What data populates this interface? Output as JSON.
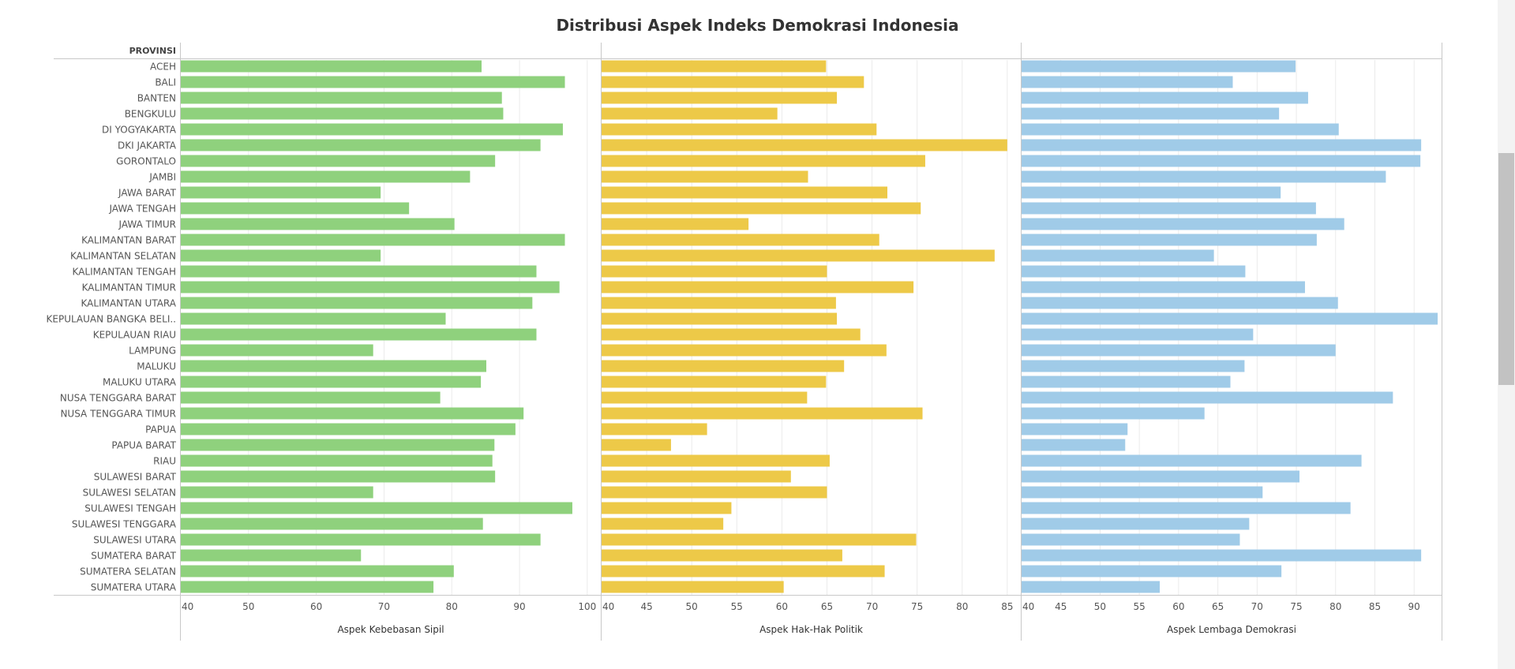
{
  "title": "Distribusi Aspek Indeks Demokrasi Indonesia",
  "colors": {
    "sipil": "#8fd17d",
    "politik": "#edc948",
    "lembaga": "#a0cbe8",
    "grid": "#ebebeb",
    "axis": "#c8c8c8",
    "text": "#555555"
  },
  "chart_data": {
    "type": "bar",
    "orientation": "horizontal",
    "row_header": "PROVINSI",
    "categories": [
      "ACEH",
      "BALI",
      "BANTEN",
      "BENGKULU",
      "DI YOGYAKARTA",
      "DKI JAKARTA",
      "GORONTALO",
      "JAMBI",
      "JAWA BARAT",
      "JAWA TENGAH",
      "JAWA TIMUR",
      "KALIMANTAN BARAT",
      "KALIMANTAN SELATAN",
      "KALIMANTAN TENGAH",
      "KALIMANTAN TIMUR",
      "KALIMANTAN UTARA",
      "KEPULAUAN BANGKA BELI..",
      "KEPULAUAN RIAU",
      "LAMPUNG",
      "MALUKU",
      "MALUKU UTARA",
      "NUSA TENGGARA BARAT",
      "NUSA TENGGARA TIMUR",
      "PAPUA",
      "PAPUA BARAT",
      "RIAU",
      "SULAWESI BARAT",
      "SULAWESI SELATAN",
      "SULAWESI TENGAH",
      "SULAWESI TENGGARA",
      "SULAWESI UTARA",
      "SUMATERA BARAT",
      "SUMATERA SELATAN",
      "SUMATERA UTARA"
    ],
    "panels": [
      {
        "xlabel": "Aspek Kebebasan Sipil",
        "xlim": [
          40,
          102
        ],
        "ticks": [
          40,
          50,
          60,
          70,
          80,
          90,
          100
        ],
        "color": "#8fd17d",
        "values": [
          84.4,
          96.7,
          87.4,
          87.6,
          96.4,
          93.1,
          86.4,
          82.7,
          69.5,
          73.7,
          80.4,
          96.7,
          69.5,
          92.5,
          95.9,
          91.9,
          79.1,
          92.5,
          68.4,
          85.1,
          84.3,
          78.3,
          90.6,
          89.4,
          86.3,
          86.0,
          86.4,
          68.4,
          97.8,
          84.6,
          93.1,
          66.6,
          80.3,
          77.3
        ]
      },
      {
        "xlabel": "Aspek Hak-Hak Politik",
        "xlim": [
          40,
          86.5
        ],
        "ticks": [
          40,
          45,
          50,
          55,
          60,
          65,
          70,
          75,
          80,
          85
        ],
        "color": "#edc948",
        "values": [
          64.9,
          69.1,
          66.1,
          59.5,
          70.5,
          85.0,
          75.9,
          62.9,
          71.7,
          75.4,
          56.3,
          70.8,
          83.6,
          65.0,
          74.6,
          66.0,
          66.1,
          68.7,
          71.6,
          66.9,
          64.9,
          62.8,
          75.6,
          51.7,
          47.7,
          65.3,
          61.0,
          65.0,
          54.4,
          53.5,
          74.9,
          66.7,
          71.4,
          60.2
        ]
      },
      {
        "xlabel": "Aspek Lembaga Demokrasi",
        "xlim": [
          40,
          93.5
        ],
        "ticks": [
          40,
          45,
          50,
          55,
          60,
          65,
          70,
          75,
          80,
          85,
          90
        ],
        "color": "#a0cbe8",
        "values": [
          74.9,
          66.9,
          76.5,
          72.8,
          80.4,
          90.9,
          90.8,
          86.4,
          73.0,
          77.5,
          81.1,
          77.6,
          64.5,
          68.5,
          76.1,
          80.3,
          93.0,
          69.5,
          80.0,
          68.4,
          66.6,
          87.3,
          63.3,
          53.5,
          53.2,
          83.3,
          75.4,
          70.7,
          81.9,
          69.0,
          67.8,
          90.9,
          73.1,
          57.6
        ]
      }
    ]
  }
}
